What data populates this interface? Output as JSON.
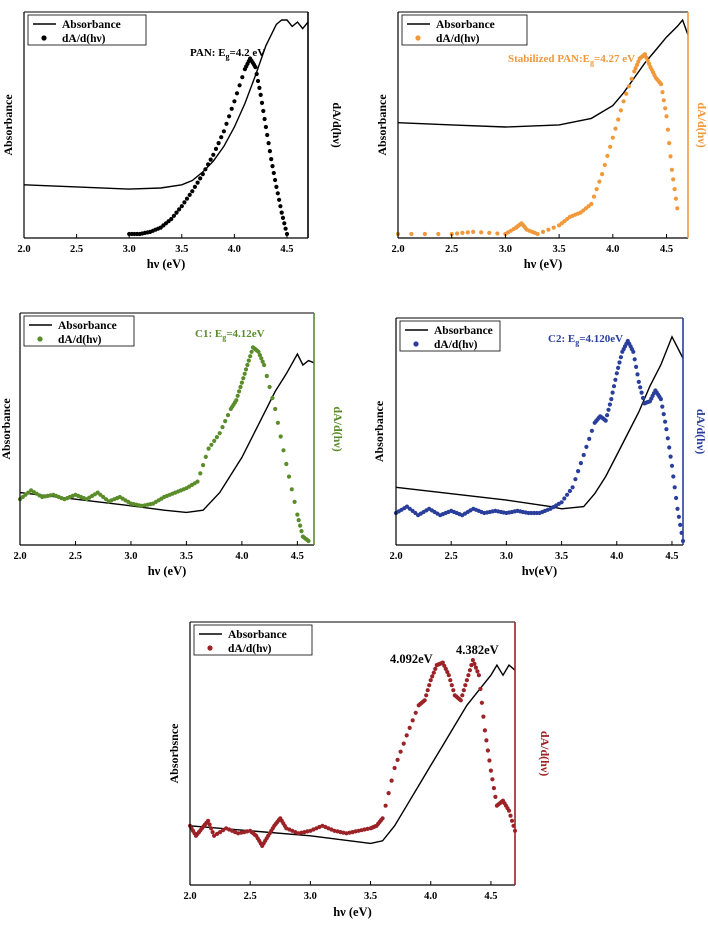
{
  "chart_data": [
    {
      "type": "line",
      "xlabel": "hν (eV)",
      "ylabel_left": "Absorbance",
      "ylabel_right": "dA/d(hν)",
      "xlim": [
        2.0,
        4.7
      ],
      "xticks": [
        "2.0",
        "2.5",
        "3.0",
        "3.5",
        "4.0",
        "4.5"
      ],
      "legend": [
        "Absorbance",
        "dA/d(hν)"
      ],
      "annotation": {
        "prefix": "PAN: E",
        "sub": "g",
        "suffix": "=4.2 eV"
      },
      "colors": {
        "absorbance": "#000000",
        "derivative": "#000000",
        "right_axis": "#000000",
        "annotation": "#000000"
      },
      "series": [
        {
          "name": "Absorbance",
          "style": "line",
          "x": [
            2.0,
            2.5,
            3.0,
            3.3,
            3.5,
            3.6,
            3.7,
            3.8,
            3.9,
            4.0,
            4.1,
            4.2,
            4.3,
            4.4,
            4.45,
            4.5,
            4.55,
            4.6,
            4.65,
            4.7
          ],
          "y": [
            0.23,
            0.22,
            0.21,
            0.215,
            0.23,
            0.25,
            0.29,
            0.34,
            0.41,
            0.5,
            0.61,
            0.74,
            0.88,
            0.98,
            1.0,
            1.0,
            0.97,
            0.99,
            0.96,
            0.99
          ]
        },
        {
          "name": "dA/d(hν)",
          "style": "dots",
          "x": [
            3.0,
            3.1,
            3.2,
            3.3,
            3.4,
            3.5,
            3.6,
            3.7,
            3.8,
            3.9,
            4.0,
            4.1,
            4.15,
            4.2,
            4.25,
            4.3,
            4.35,
            4.4,
            4.45,
            4.5
          ],
          "y": [
            0.0,
            0.0,
            0.01,
            0.03,
            0.07,
            0.13,
            0.2,
            0.28,
            0.37,
            0.48,
            0.62,
            0.77,
            0.82,
            0.78,
            0.65,
            0.5,
            0.35,
            0.22,
            0.1,
            0.0
          ]
        }
      ]
    },
    {
      "type": "line",
      "xlabel": "hν (eV)",
      "ylabel_left": "Absorbance",
      "ylabel_right": "dA/d(hν)",
      "xlim": [
        2.0,
        4.7
      ],
      "xticks": [
        "2.0",
        "2.5",
        "3.0",
        "3.5",
        "4.0",
        "4.5"
      ],
      "legend": [
        "Absorbance",
        "dA/d(hν)"
      ],
      "annotation": {
        "prefix": "Stabilized PAN:E",
        "sub": "g",
        "suffix": "=4.27 eV"
      },
      "colors": {
        "absorbance": "#000000",
        "derivative": "#f0983a",
        "right_axis": "#f0983a",
        "annotation": "#f0983a"
      },
      "series": [
        {
          "name": "Absorbance",
          "style": "line",
          "x": [
            2.0,
            2.5,
            3.0,
            3.5,
            3.8,
            4.0,
            4.1,
            4.2,
            4.3,
            4.4,
            4.5,
            4.6,
            4.65,
            4.7
          ],
          "y": [
            0.52,
            0.51,
            0.5,
            0.51,
            0.54,
            0.6,
            0.66,
            0.73,
            0.8,
            0.86,
            0.92,
            0.97,
            1.0,
            0.93
          ]
        },
        {
          "name": "dA/d(hν)",
          "style": "dots",
          "x": [
            2.0,
            2.5,
            2.7,
            3.0,
            3.1,
            3.15,
            3.2,
            3.3,
            3.5,
            3.6,
            3.7,
            3.8,
            3.9,
            4.0,
            4.1,
            4.2,
            4.25,
            4.3,
            4.35,
            4.4,
            4.45,
            4.5,
            4.55,
            4.6
          ],
          "y": [
            0.0,
            0.0,
            0.01,
            0.0,
            0.03,
            0.05,
            0.02,
            0.0,
            0.04,
            0.08,
            0.1,
            0.14,
            0.28,
            0.45,
            0.62,
            0.76,
            0.82,
            0.84,
            0.78,
            0.73,
            0.7,
            0.55,
            0.3,
            0.12
          ]
        }
      ]
    },
    {
      "type": "line",
      "xlabel": "hν (eV)",
      "ylabel_left": "Absorbance",
      "ylabel_right": "dA/d(hν)",
      "xlim": [
        2.0,
        4.65
      ],
      "xticks": [
        "2.0",
        "2.5",
        "3.0",
        "3.5",
        "4.0",
        "4.5"
      ],
      "legend": [
        "Absorbance",
        "dA/d(hν)"
      ],
      "annotation": {
        "prefix": "C1: E",
        "sub": "g",
        "suffix": "=4.12eV"
      },
      "colors": {
        "absorbance": "#000000",
        "derivative": "#5b8c2a",
        "right_axis": "#5b8c2a",
        "annotation": "#5b8c2a"
      },
      "series": [
        {
          "name": "Absorbance",
          "style": "line",
          "x": [
            2.0,
            2.5,
            3.0,
            3.3,
            3.5,
            3.65,
            3.8,
            3.9,
            4.0,
            4.1,
            4.2,
            4.3,
            4.4,
            4.5,
            4.55,
            4.6,
            4.65
          ],
          "y": [
            0.22,
            0.19,
            0.16,
            0.14,
            0.13,
            0.14,
            0.22,
            0.3,
            0.38,
            0.48,
            0.58,
            0.68,
            0.76,
            0.85,
            0.8,
            0.82,
            0.81
          ]
        },
        {
          "name": "dA/d(hν)",
          "style": "dots",
          "x": [
            2.0,
            2.1,
            2.2,
            2.3,
            2.4,
            2.5,
            2.6,
            2.7,
            2.8,
            2.9,
            3.0,
            3.1,
            3.2,
            3.3,
            3.4,
            3.5,
            3.6,
            3.7,
            3.8,
            3.9,
            3.95,
            4.0,
            4.05,
            4.1,
            4.15,
            4.2,
            4.3,
            4.4,
            4.5,
            4.55,
            4.6
          ],
          "y": [
            0.19,
            0.23,
            0.2,
            0.21,
            0.19,
            0.21,
            0.19,
            0.22,
            0.18,
            0.2,
            0.17,
            0.16,
            0.17,
            0.2,
            0.22,
            0.24,
            0.27,
            0.42,
            0.49,
            0.6,
            0.64,
            0.72,
            0.8,
            0.88,
            0.86,
            0.8,
            0.6,
            0.35,
            0.12,
            0.02,
            0.0
          ]
        }
      ]
    },
    {
      "type": "line",
      "xlabel": "hν(eV)",
      "ylabel_left": "Absorbance",
      "ylabel_right": "dA/d(hν)",
      "xlim": [
        2.0,
        4.6
      ],
      "xticks": [
        "2.0",
        "2.5",
        "3.0",
        "3.5",
        "4.0",
        "4.5"
      ],
      "legend": [
        "Absorbance",
        "dA/d(hν)"
      ],
      "annotation": {
        "prefix": "C2: E",
        "sub": "g",
        "suffix": "=4.120eV"
      },
      "colors": {
        "absorbance": "#000000",
        "derivative": "#2a3f9c",
        "right_axis": "#2a3f9c",
        "annotation": "#2a3f9c"
      },
      "series": [
        {
          "name": "Absorbance",
          "style": "line",
          "x": [
            2.0,
            2.5,
            3.0,
            3.4,
            3.5,
            3.7,
            3.8,
            3.9,
            4.0,
            4.1,
            4.2,
            4.3,
            4.4,
            4.5,
            4.55,
            4.6
          ],
          "y": [
            0.25,
            0.22,
            0.19,
            0.16,
            0.15,
            0.16,
            0.22,
            0.3,
            0.4,
            0.5,
            0.6,
            0.72,
            0.82,
            0.95,
            0.9,
            0.85
          ]
        },
        {
          "name": "dA/d(hν)",
          "style": "dots",
          "x": [
            2.0,
            2.1,
            2.2,
            2.3,
            2.4,
            2.5,
            2.6,
            2.7,
            2.8,
            2.9,
            3.0,
            3.1,
            3.2,
            3.3,
            3.4,
            3.5,
            3.6,
            3.7,
            3.8,
            3.85,
            3.9,
            3.95,
            4.0,
            4.05,
            4.1,
            4.15,
            4.2,
            4.25,
            4.3,
            4.35,
            4.4,
            4.45,
            4.5,
            4.55,
            4.6
          ],
          "y": [
            0.13,
            0.16,
            0.12,
            0.15,
            0.12,
            0.14,
            0.12,
            0.15,
            0.13,
            0.14,
            0.13,
            0.14,
            0.13,
            0.13,
            0.15,
            0.18,
            0.25,
            0.4,
            0.55,
            0.58,
            0.56,
            0.66,
            0.78,
            0.88,
            0.93,
            0.88,
            0.74,
            0.64,
            0.65,
            0.7,
            0.66,
            0.52,
            0.35,
            0.15,
            0.0
          ]
        }
      ]
    },
    {
      "type": "line",
      "xlabel": "hν (eV)",
      "ylabel_left": "Absorbsnce",
      "ylabel_right": "dA/d(hν)",
      "xlim": [
        2.0,
        4.7
      ],
      "xticks": [
        "2.0",
        "2.5",
        "3.0",
        "3.5",
        "4.0",
        "4.5"
      ],
      "legend": [
        "Absorbance",
        "dA/d(hν)"
      ],
      "annotations": [
        "4.092eV",
        "4.382eV"
      ],
      "colors": {
        "absorbance": "#000000",
        "derivative": "#9b2226",
        "right_axis": "#9b2226",
        "annotation": "#000000"
      },
      "series": [
        {
          "name": "Absorbance",
          "style": "line",
          "x": [
            2.0,
            2.5,
            3.0,
            3.5,
            3.6,
            3.7,
            3.8,
            3.9,
            4.0,
            4.1,
            4.2,
            4.3,
            4.4,
            4.5,
            4.55,
            4.6,
            4.65,
            4.7
          ],
          "y": [
            0.22,
            0.2,
            0.18,
            0.15,
            0.16,
            0.22,
            0.3,
            0.38,
            0.46,
            0.54,
            0.62,
            0.7,
            0.76,
            0.82,
            0.86,
            0.82,
            0.86,
            0.84
          ]
        },
        {
          "name": "dA/d(hν)",
          "style": "dots",
          "x": [
            2.0,
            2.05,
            2.1,
            2.15,
            2.2,
            2.3,
            2.4,
            2.5,
            2.55,
            2.6,
            2.65,
            2.7,
            2.75,
            2.8,
            2.9,
            3.0,
            3.1,
            3.2,
            3.3,
            3.4,
            3.5,
            3.55,
            3.6,
            3.7,
            3.8,
            3.9,
            3.95,
            4.0,
            4.05,
            4.1,
            4.15,
            4.2,
            4.25,
            4.3,
            4.35,
            4.4,
            4.45,
            4.5,
            4.55,
            4.6,
            4.65,
            4.7
          ],
          "y": [
            0.22,
            0.18,
            0.21,
            0.24,
            0.18,
            0.21,
            0.19,
            0.2,
            0.18,
            0.14,
            0.18,
            0.22,
            0.25,
            0.21,
            0.19,
            0.2,
            0.22,
            0.2,
            0.19,
            0.2,
            0.21,
            0.22,
            0.25,
            0.45,
            0.58,
            0.7,
            0.72,
            0.8,
            0.86,
            0.87,
            0.82,
            0.74,
            0.72,
            0.8,
            0.88,
            0.82,
            0.6,
            0.44,
            0.3,
            0.32,
            0.28,
            0.2
          ]
        }
      ]
    }
  ]
}
